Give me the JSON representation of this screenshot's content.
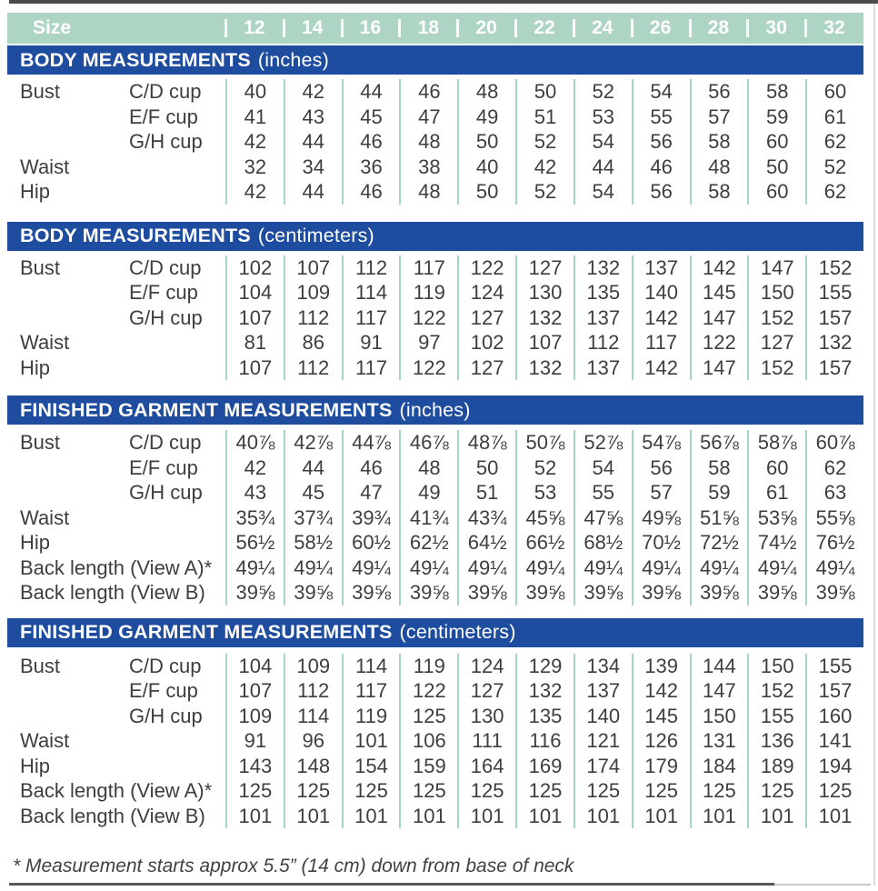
{
  "colors": {
    "header_teal": "#aed5c3",
    "header_blue": "#1e4c9f",
    "divider_teal": "#a8d4c2",
    "text": "#3d3e40"
  },
  "size_header": {
    "label": "Size",
    "sizes": [
      "12",
      "14",
      "16",
      "18",
      "20",
      "22",
      "24",
      "26",
      "28",
      "30",
      "32"
    ]
  },
  "sections": [
    {
      "title": "BODY MEASUREMENTS",
      "unit": "(inches)",
      "rows": [
        {
          "label": "Bust",
          "sublabel": "C/D cup",
          "values": [
            "40",
            "42",
            "44",
            "46",
            "48",
            "50",
            "52",
            "54",
            "56",
            "58",
            "60"
          ]
        },
        {
          "label": "",
          "sublabel": "E/F cup",
          "values": [
            "41",
            "43",
            "45",
            "47",
            "49",
            "51",
            "53",
            "55",
            "57",
            "59",
            "61"
          ]
        },
        {
          "label": "",
          "sublabel": "G/H cup",
          "values": [
            "42",
            "44",
            "46",
            "48",
            "50",
            "52",
            "54",
            "56",
            "58",
            "60",
            "62"
          ]
        },
        {
          "label": "Waist",
          "sublabel": "",
          "values": [
            "32",
            "34",
            "36",
            "38",
            "40",
            "42",
            "44",
            "46",
            "48",
            "50",
            "52"
          ]
        },
        {
          "label": "Hip",
          "sublabel": "",
          "values": [
            "42",
            "44",
            "46",
            "48",
            "50",
            "52",
            "54",
            "56",
            "58",
            "60",
            "62"
          ]
        }
      ]
    },
    {
      "title": "BODY MEASUREMENTS",
      "unit": "(centimeters)",
      "rows": [
        {
          "label": "Bust",
          "sublabel": "C/D cup",
          "values": [
            "102",
            "107",
            "112",
            "117",
            "122",
            "127",
            "132",
            "137",
            "142",
            "147",
            "152"
          ]
        },
        {
          "label": "",
          "sublabel": "E/F cup",
          "values": [
            "104",
            "109",
            "114",
            "119",
            "124",
            "130",
            "135",
            "140",
            "145",
            "150",
            "155"
          ]
        },
        {
          "label": "",
          "sublabel": "G/H cup",
          "values": [
            "107",
            "112",
            "117",
            "122",
            "127",
            "132",
            "137",
            "142",
            "147",
            "152",
            "157"
          ]
        },
        {
          "label": "Waist",
          "sublabel": "",
          "values": [
            "81",
            "86",
            "91",
            "97",
            "102",
            "107",
            "112",
            "117",
            "122",
            "127",
            "132"
          ]
        },
        {
          "label": "Hip",
          "sublabel": "",
          "values": [
            "107",
            "112",
            "117",
            "122",
            "127",
            "132",
            "137",
            "142",
            "147",
            "152",
            "157"
          ]
        }
      ]
    },
    {
      "title": "FINISHED GARMENT MEASUREMENTS",
      "unit": "(inches)",
      "rows": [
        {
          "label": "Bust",
          "sublabel": "C/D cup",
          "values": [
            "40⅞",
            "42⅞",
            "44⅞",
            "46⅞",
            "48⅞",
            "50⅞",
            "52⅞",
            "54⅞",
            "56⅞",
            "58⅞",
            "60⅞"
          ]
        },
        {
          "label": "",
          "sublabel": "E/F cup",
          "values": [
            "42",
            "44",
            "46",
            "48",
            "50",
            "52",
            "54",
            "56",
            "58",
            "60",
            "62"
          ]
        },
        {
          "label": "",
          "sublabel": "G/H cup",
          "values": [
            "43",
            "45",
            "47",
            "49",
            "51",
            "53",
            "55",
            "57",
            "59",
            "61",
            "63"
          ]
        },
        {
          "label": "Waist",
          "sublabel": "",
          "values": [
            "35¾",
            "37¾",
            "39¾",
            "41¾",
            "43¾",
            "45⅝",
            "47⅝",
            "49⅝",
            "51⅝",
            "53⅝",
            "55⅝"
          ]
        },
        {
          "label": "Hip",
          "sublabel": "",
          "values": [
            "56½",
            "58½",
            "60½",
            "62½",
            "64½",
            "66½",
            "68½",
            "70½",
            "72½",
            "74½",
            "76½"
          ]
        },
        {
          "label": "Back length (View A)*",
          "sublabel": "",
          "values": [
            "49¼",
            "49¼",
            "49¼",
            "49¼",
            "49¼",
            "49¼",
            "49¼",
            "49¼",
            "49¼",
            "49¼",
            "49¼"
          ]
        },
        {
          "label": "Back length (View B)",
          "sublabel": "",
          "values": [
            "39⅝",
            "39⅝",
            "39⅝",
            "39⅝",
            "39⅝",
            "39⅝",
            "39⅝",
            "39⅝",
            "39⅝",
            "39⅝",
            "39⅝"
          ]
        }
      ]
    },
    {
      "title": "FINISHED GARMENT MEASUREMENTS",
      "unit": "(centimeters)",
      "rows": [
        {
          "label": "Bust",
          "sublabel": "C/D cup",
          "values": [
            "104",
            "109",
            "114",
            "119",
            "124",
            "129",
            "134",
            "139",
            "144",
            "150",
            "155"
          ]
        },
        {
          "label": "",
          "sublabel": "E/F cup",
          "values": [
            "107",
            "112",
            "117",
            "122",
            "127",
            "132",
            "137",
            "142",
            "147",
            "152",
            "157"
          ]
        },
        {
          "label": "",
          "sublabel": "G/H cup",
          "values": [
            "109",
            "114",
            "119",
            "125",
            "130",
            "135",
            "140",
            "145",
            "150",
            "155",
            "160"
          ]
        },
        {
          "label": "Waist",
          "sublabel": "",
          "values": [
            "91",
            "96",
            "101",
            "106",
            "111",
            "116",
            "121",
            "126",
            "131",
            "136",
            "141"
          ]
        },
        {
          "label": "Hip",
          "sublabel": "",
          "values": [
            "143",
            "148",
            "154",
            "159",
            "164",
            "169",
            "174",
            "179",
            "184",
            "189",
            "194"
          ]
        },
        {
          "label": "Back length (View A)*",
          "sublabel": "",
          "values": [
            "125",
            "125",
            "125",
            "125",
            "125",
            "125",
            "125",
            "125",
            "125",
            "125",
            "125"
          ]
        },
        {
          "label": "Back length (View B)",
          "sublabel": "",
          "values": [
            "101",
            "101",
            "101",
            "101",
            "101",
            "101",
            "101",
            "101",
            "101",
            "101",
            "101"
          ]
        }
      ]
    }
  ],
  "footnote": "* Measurement starts approx 5.5” (14 cm) down from base of neck"
}
